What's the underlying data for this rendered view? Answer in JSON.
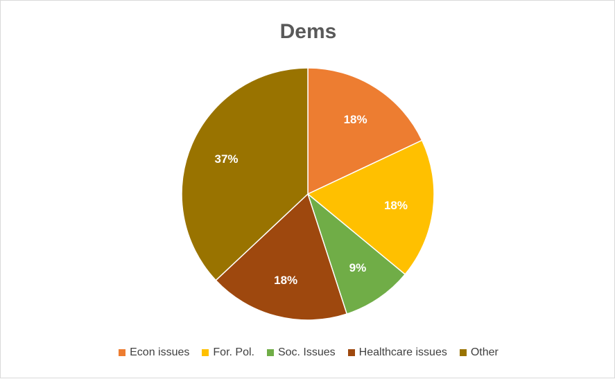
{
  "chart_data": {
    "type": "pie",
    "title": "Dems",
    "labels": [
      "Econ issues",
      "For. Pol.",
      "Soc. Issues",
      "Healthcare issues",
      "Other"
    ],
    "values": [
      18,
      18,
      9,
      18,
      37
    ],
    "data_labels": [
      "18%",
      "18%",
      "9%",
      "18%",
      "37%"
    ],
    "colors": [
      "#ED7D31",
      "#FFC000",
      "#70AD47",
      "#9E480E",
      "#997300"
    ],
    "legend_position": "bottom"
  }
}
